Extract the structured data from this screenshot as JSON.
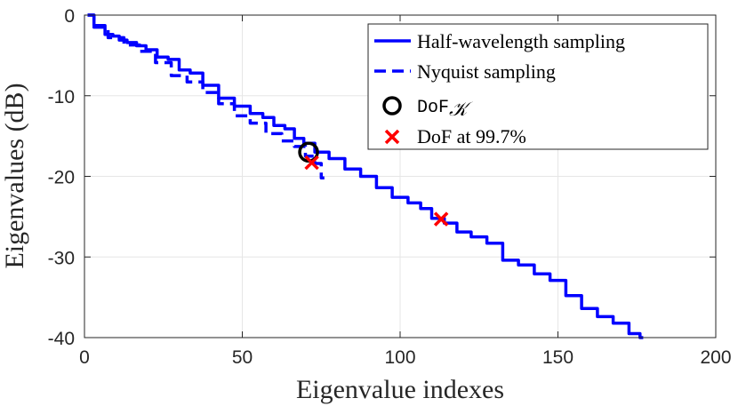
{
  "chart_data": {
    "type": "line",
    "xlabel": "Eigenvalue indexes",
    "ylabel": "Eigenvalues (dB)",
    "xlim": [
      0,
      200
    ],
    "ylim": [
      -40,
      0
    ],
    "xticks": [
      0,
      50,
      100,
      150,
      200
    ],
    "yticks": [
      0,
      -10,
      -20,
      -30,
      -40
    ],
    "xtick_labels": [
      "0",
      "50",
      "100",
      "150",
      "200"
    ],
    "ytick_labels": [
      "0",
      "-10",
      "-20",
      "-30",
      "-40"
    ],
    "grid": true,
    "legend_position": "top-right",
    "colors": {
      "line": "#0000ff",
      "marker_dof": "#000000",
      "marker_997": "#ff0000"
    },
    "series": [
      {
        "name": "Half-wavelength sampling",
        "style": "solid",
        "x": [
          1,
          5,
          8,
          10,
          12,
          15,
          18,
          21,
          25,
          28,
          32,
          35,
          40,
          45,
          50,
          55,
          58,
          62,
          65,
          68,
          71,
          75,
          80,
          85,
          90,
          95,
          100,
          105,
          108,
          112,
          116,
          120,
          125,
          130,
          135,
          140,
          145,
          150,
          155,
          160,
          165,
          170,
          175,
          177
        ],
        "y": [
          0,
          -1.3,
          -2.4,
          -2.6,
          -3.1,
          -3.4,
          -3.8,
          -4.3,
          -5.2,
          -5.5,
          -6.8,
          -7.2,
          -8.7,
          -10.3,
          -11.3,
          -12.2,
          -12.7,
          -13.7,
          -14.1,
          -15.3,
          -15.9,
          -17.0,
          -17.8,
          -19.1,
          -20.0,
          -21.4,
          -22.6,
          -23.3,
          -24.0,
          -25.2,
          -25.8,
          -26.9,
          -27.5,
          -28.3,
          -30.4,
          -31.0,
          -32.1,
          -32.9,
          -34.8,
          -36.4,
          -37.4,
          -38.2,
          -39.5,
          -40.0
        ]
      },
      {
        "name": "Nyquist sampling",
        "style": "dashed",
        "x": [
          1,
          5,
          10,
          15,
          20,
          25,
          30,
          35,
          40,
          45,
          50,
          55,
          60,
          65,
          68,
          72,
          74,
          76
        ],
        "y": [
          0,
          -1.5,
          -2.8,
          -3.7,
          -4.5,
          -5.9,
          -7.5,
          -8.3,
          -9.6,
          -11.0,
          -12.5,
          -13.4,
          -14.7,
          -15.6,
          -16.3,
          -17.5,
          -18.4,
          -20.2
        ]
      }
    ],
    "markers": [
      {
        "name": "DoF_K",
        "legend_label": "DoF",
        "legend_subscript": "𝒦",
        "symbol": "circle",
        "x": 71,
        "y": -17.0
      },
      {
        "name": "DoF at 99.7%",
        "legend_label": "DoF at 99.7%",
        "symbol": "x",
        "points": [
          {
            "x": 72,
            "y": -18.3
          },
          {
            "x": 113,
            "y": -25.3
          }
        ]
      }
    ]
  }
}
